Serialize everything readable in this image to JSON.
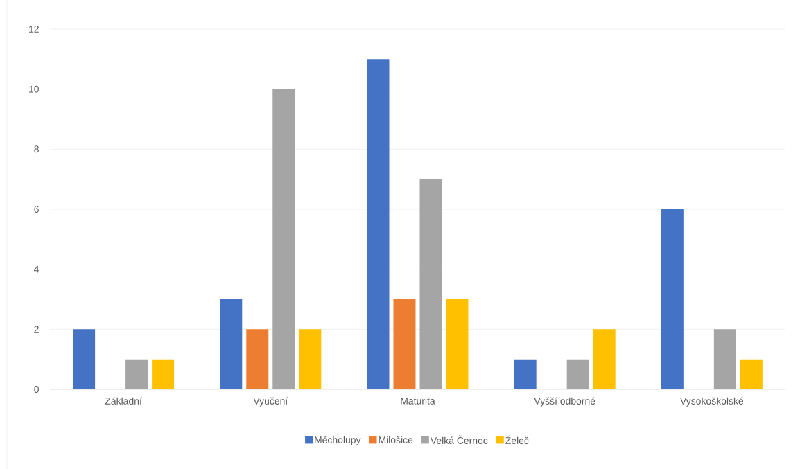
{
  "chart_data": {
    "type": "bar",
    "categories": [
      "Základní",
      "Vyučení",
      "Maturita",
      "Vyšší odborné",
      "Vysokoškolské"
    ],
    "series": [
      {
        "name": "Měcholupy",
        "color": "#4472c4",
        "values": [
          2,
          3,
          11,
          1,
          6
        ]
      },
      {
        "name": "Milošice",
        "color": "#ed7d31",
        "values": [
          0,
          2,
          3,
          0,
          0
        ]
      },
      {
        "name": "Velká Černoc",
        "color": "#a5a5a5",
        "values": [
          1,
          10,
          7,
          1,
          2
        ]
      },
      {
        "name": "Želeč",
        "color": "#ffc000",
        "values": [
          1,
          2,
          3,
          2,
          1
        ]
      }
    ],
    "ylim": [
      0,
      12
    ],
    "yticks": [
      0,
      2,
      4,
      6,
      8,
      10,
      12
    ],
    "grid": "y",
    "legend": "bottom"
  }
}
